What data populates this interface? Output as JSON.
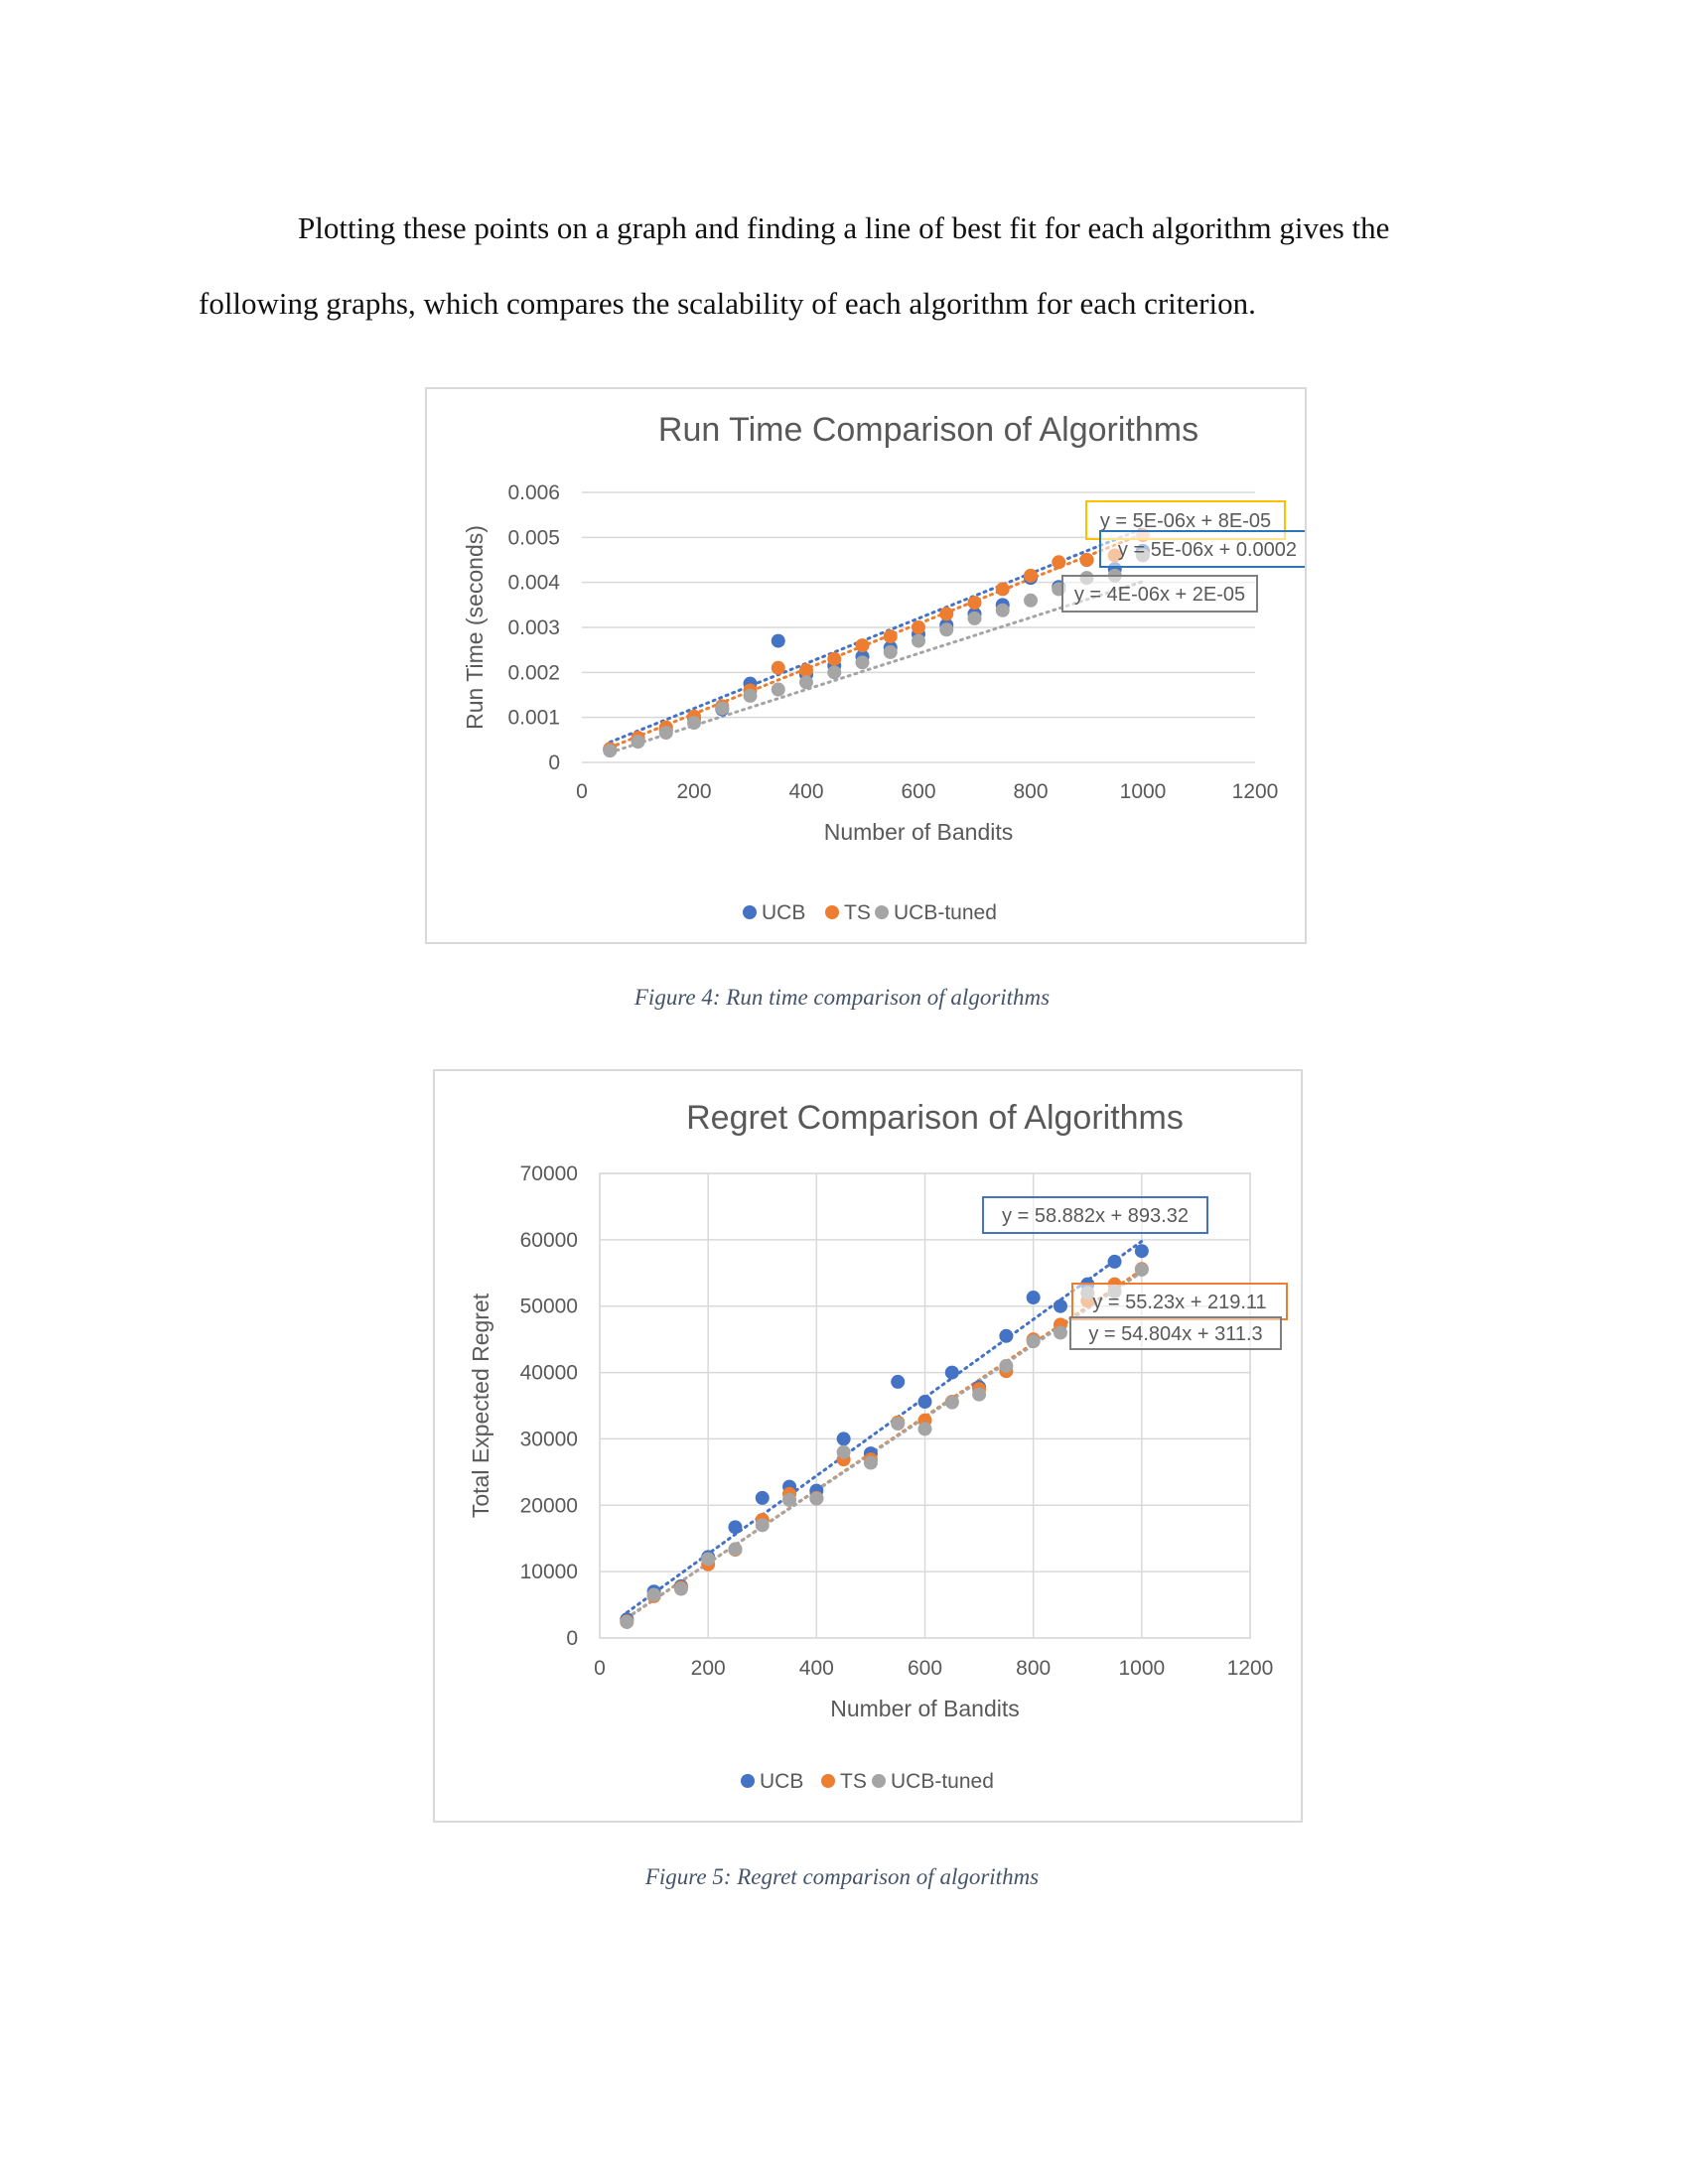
{
  "paragraph": "Plotting these points on a graph and finding a line of best fit for each algorithm gives the following graphs, which compares the scalability of each algorithm for each criterion.",
  "captions": {
    "figure4": "Figure 4: Run time comparison of algorithms",
    "figure5": "Figure 5: Regret comparison of algorithms"
  },
  "colors": {
    "UCB": "#4472c4",
    "TS": "#ed7d31",
    "UCB-tuned": "#a5a5a5",
    "text": "#595959",
    "grid": "#d9d9d9"
  },
  "chart_data": [
    {
      "type": "scatter",
      "title": "Run Time Comparison of Algorithms",
      "xlabel": "Number of Bandits",
      "ylabel": "Run Time (seconds)",
      "xlim": [
        0,
        1200
      ],
      "ylim": [
        0,
        0.006
      ],
      "xticks": [
        0,
        200,
        400,
        600,
        800,
        1000,
        1200
      ],
      "yticks": [
        0,
        0.001,
        0.002,
        0.003,
        0.004,
        0.005,
        0.006
      ],
      "ytick_labels": [
        "0",
        "0.001",
        "0.002",
        "0.003",
        "0.004",
        "0.005",
        "0.006"
      ],
      "grid": "horizontal",
      "legend": "bottom",
      "x": [
        50,
        100,
        150,
        200,
        250,
        300,
        350,
        400,
        450,
        500,
        550,
        600,
        650,
        700,
        750,
        800,
        850,
        900,
        950,
        1000
      ],
      "series": [
        {
          "name": "UCB",
          "color": "#4472c4",
          "values": [
            0.00028,
            0.00052,
            0.00072,
            0.00098,
            0.00118,
            0.00175,
            0.0027,
            0.00195,
            0.00215,
            0.00235,
            0.00255,
            0.00285,
            0.00305,
            0.0033,
            0.0035,
            0.0041,
            0.0039,
            0.0045,
            0.0043,
            0.0047
          ],
          "trendline": {
            "slope": 5e-06,
            "intercept": 0.0002,
            "equation": "y = 5E-06x + 0.0002",
            "box_color": "#2e75b6"
          }
        },
        {
          "name": "TS",
          "color": "#ed7d31",
          "values": [
            0.0003,
            0.00055,
            0.00078,
            0.00102,
            0.00125,
            0.0016,
            0.0021,
            0.00205,
            0.0023,
            0.0026,
            0.0028,
            0.003,
            0.0033,
            0.00355,
            0.00385,
            0.00415,
            0.00445,
            0.0045,
            0.0046,
            0.00505
          ],
          "trendline": {
            "slope": 5e-06,
            "intercept": 8e-05,
            "equation": "y = 5E-06x + 8E-05",
            "box_color": "#ffc000"
          }
        },
        {
          "name": "UCB-tuned",
          "color": "#a5a5a5",
          "values": [
            0.00026,
            0.00046,
            0.00066,
            0.00088,
            0.0012,
            0.00148,
            0.00162,
            0.00178,
            0.002,
            0.00222,
            0.00245,
            0.0027,
            0.00295,
            0.0032,
            0.00338,
            0.0036,
            0.00385,
            0.0041,
            0.00415,
            0.0046
          ],
          "trendline": {
            "slope": 4e-06,
            "intercept": 2e-05,
            "equation": "y = 4E-06x + 2E-05",
            "box_color": "#7f7f7f"
          }
        }
      ]
    },
    {
      "type": "scatter",
      "title": "Regret Comparison of Algorithms",
      "xlabel": "Number of Bandits",
      "ylabel": "Total Expected Regret",
      "xlim": [
        0,
        1200
      ],
      "ylim": [
        0,
        70000
      ],
      "xticks": [
        0,
        200,
        400,
        600,
        800,
        1000,
        1200
      ],
      "yticks": [
        0,
        10000,
        20000,
        30000,
        40000,
        50000,
        60000,
        70000
      ],
      "ytick_labels": [
        "0",
        "10000",
        "20000",
        "30000",
        "40000",
        "50000",
        "60000",
        "70000"
      ],
      "grid": "both",
      "legend": "bottom",
      "x": [
        50,
        100,
        150,
        200,
        250,
        300,
        350,
        400,
        450,
        500,
        550,
        600,
        650,
        700,
        750,
        800,
        850,
        900,
        950,
        1000
      ],
      "series": [
        {
          "name": "UCB",
          "color": "#4472c4",
          "values": [
            2800,
            7000,
            7800,
            12200,
            16700,
            21100,
            22800,
            22200,
            30000,
            27800,
            38600,
            35600,
            40000,
            37800,
            45500,
            51300,
            50000,
            53300,
            56700,
            58300
          ],
          "trendline": {
            "slope": 58.882,
            "intercept": 893.32,
            "equation": "y = 58.882x + 893.32",
            "box_color": "#4472c4"
          }
        },
        {
          "name": "TS",
          "color": "#ed7d31",
          "values": [
            2500,
            6300,
            7600,
            11100,
            13300,
            17800,
            21700,
            21100,
            26900,
            26900,
            32500,
            32800,
            35600,
            37500,
            40200,
            45000,
            47200,
            50800,
            53300,
            55600
          ],
          "trendline": {
            "slope": 55.23,
            "intercept": 219.11,
            "equation": "y = 55.23x + 219.11",
            "box_color": "#ed7d31"
          }
        },
        {
          "name": "UCB-tuned",
          "color": "#a5a5a5",
          "values": [
            2400,
            6500,
            7400,
            11900,
            13400,
            17000,
            20800,
            21000,
            28000,
            26400,
            32300,
            31500,
            35500,
            36700,
            41000,
            44700,
            46000,
            52000,
            52200,
            55500
          ],
          "trendline": {
            "slope": 54.804,
            "intercept": 311.3,
            "equation": "y = 54.804x + 311.3",
            "box_color": "#7f7f7f"
          }
        }
      ]
    }
  ]
}
